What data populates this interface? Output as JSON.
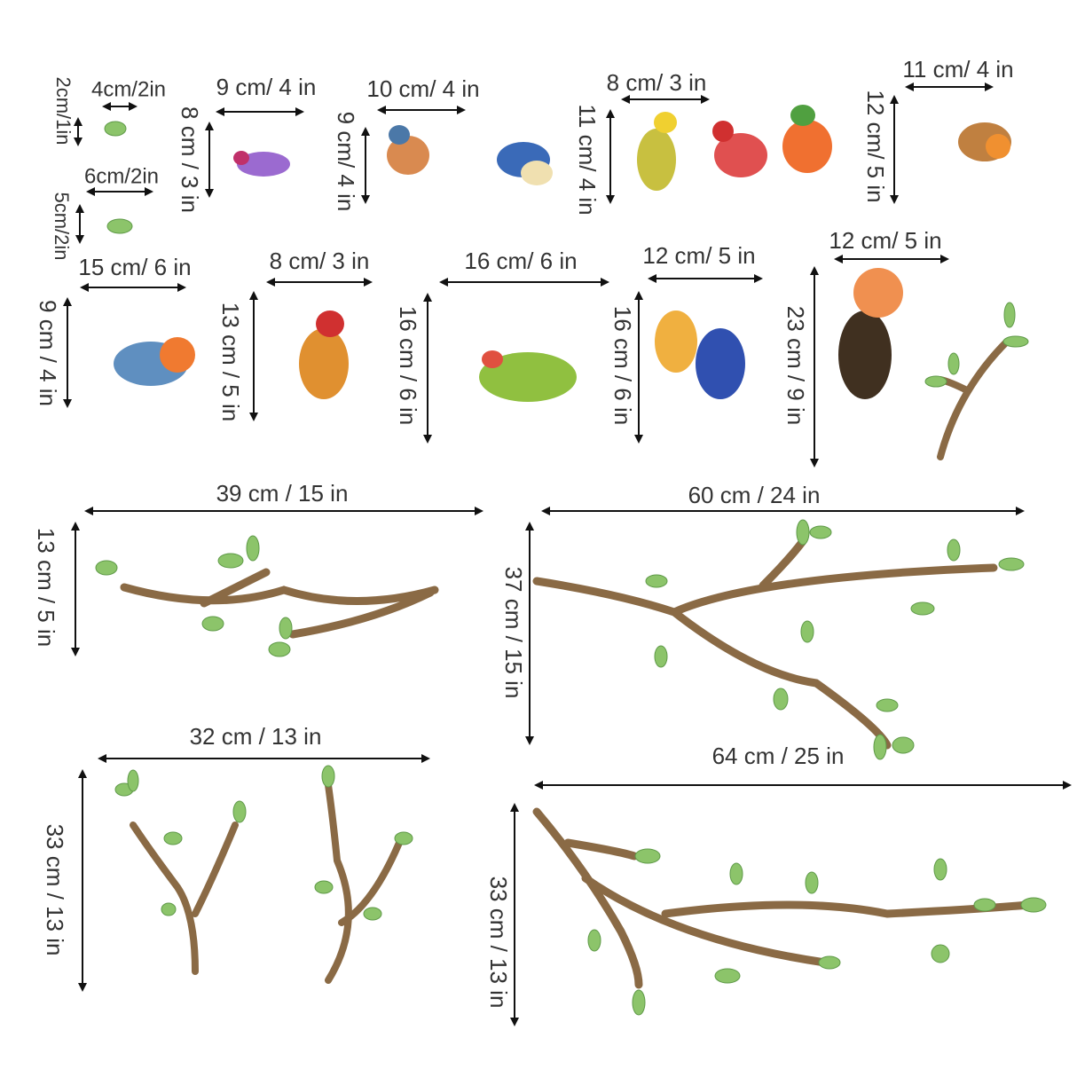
{
  "labels": [
    "4cm/2in",
    "9  cm/ 4 in",
    "10 cm/ 4 in",
    "8 cm/ 3 in",
    "11 cm/ 4 in",
    "6cm/2in",
    "15 cm/ 6 in",
    "8 cm/ 3 in",
    "16 cm/ 6 in",
    "12 cm/ 5 in",
    "12 cm/ 5 in",
    "39 cm / 15 in",
    "60 cm / 24 in",
    "32 cm / 13 in",
    "64 cm / 25 in",
    "2cm/1in",
    "5cm/2in",
    "8 cm / 3 in",
    "9 cm/ 4 in",
    "11 cm/ 4 in",
    "12 cm/ 5 in",
    "9 cm / 4 in",
    "13 cm / 5 in",
    "16 cm / 6 in",
    "16 cm / 6 in",
    "23 cm / 9 in",
    "13 cm / 5 in",
    "37 cm / 15 in",
    "33 cm / 13 in",
    "33 cm / 13 in"
  ]
}
